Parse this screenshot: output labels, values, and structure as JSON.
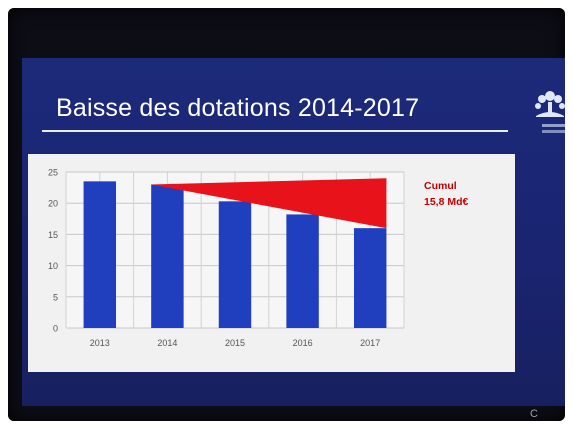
{
  "slide": {
    "title": "Baisse des dotations 2014-2017"
  },
  "chart_data": {
    "type": "bar",
    "categories": [
      "2013",
      "2014",
      "2015",
      "2016",
      "2017"
    ],
    "values": [
      23.5,
      23,
      20.3,
      18.2,
      16
    ],
    "ylim": [
      0,
      25
    ],
    "yticks": [
      0,
      5,
      10,
      15,
      20,
      25
    ],
    "grid": true,
    "annotation": {
      "lines": [
        "Cumul",
        "15,8 Md€"
      ],
      "area_between": {
        "from_category": "2014",
        "to_category": "2017",
        "reference_value": 24
      }
    },
    "colors": {
      "bar": "#1f3fbf",
      "loss_area": "#e8121b",
      "annotation_text": "#c00000"
    }
  },
  "colors": {
    "screen_bg": "#1c2a7a",
    "title_text": "#ffffff",
    "chart_bg": "#f1f1f1"
  },
  "logo": {
    "name": "tree-logo-icon"
  },
  "watermark": "C"
}
